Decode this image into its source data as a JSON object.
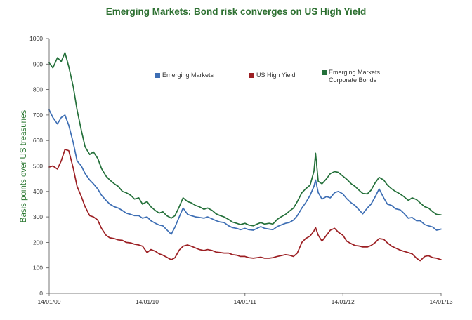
{
  "chart_data": {
    "type": "line",
    "title": "Emerging Markets: Bond risk converges on US High Yield",
    "ylabel": "Basis points over US treasuries",
    "ylim": [
      0,
      1000
    ],
    "y_ticks": [
      0,
      100,
      200,
      300,
      400,
      500,
      600,
      700,
      800,
      900,
      1000
    ],
    "x_ticks": [
      "2009-01-14",
      "2010-01-14",
      "2011-01-14",
      "2012-01-14",
      "2013-01-14"
    ],
    "x_tick_labels": [
      "14/01/09",
      "14/01/10",
      "14/01/11",
      "14/01/12",
      "14/01/13"
    ],
    "grid": false,
    "legend_position": "top-center",
    "title_color": "#2d7031",
    "axis_label_color": "#2d7a34",
    "x": [
      "2009-01-14",
      "2009-01-28",
      "2009-02-14",
      "2009-02-28",
      "2009-03-14",
      "2009-03-28",
      "2009-04-14",
      "2009-04-28",
      "2009-05-14",
      "2009-05-28",
      "2009-06-14",
      "2009-06-28",
      "2009-07-14",
      "2009-07-28",
      "2009-08-14",
      "2009-08-28",
      "2009-09-14",
      "2009-09-28",
      "2009-10-14",
      "2009-10-28",
      "2009-11-14",
      "2009-11-28",
      "2009-12-14",
      "2009-12-28",
      "2010-01-14",
      "2010-01-28",
      "2010-02-14",
      "2010-02-28",
      "2010-03-14",
      "2010-03-28",
      "2010-04-14",
      "2010-04-28",
      "2010-05-14",
      "2010-05-28",
      "2010-06-14",
      "2010-06-28",
      "2010-07-14",
      "2010-07-28",
      "2010-08-14",
      "2010-08-28",
      "2010-09-14",
      "2010-09-28",
      "2010-10-14",
      "2010-10-28",
      "2010-11-14",
      "2010-11-28",
      "2010-12-14",
      "2010-12-28",
      "2011-01-14",
      "2011-01-28",
      "2011-02-14",
      "2011-02-28",
      "2011-03-14",
      "2011-03-28",
      "2011-04-14",
      "2011-04-28",
      "2011-05-14",
      "2011-05-28",
      "2011-06-14",
      "2011-06-28",
      "2011-07-14",
      "2011-07-28",
      "2011-08-14",
      "2011-08-28",
      "2011-09-14",
      "2011-09-28",
      "2011-10-04",
      "2011-10-14",
      "2011-10-28",
      "2011-11-14",
      "2011-11-28",
      "2011-12-14",
      "2011-12-28",
      "2012-01-14",
      "2012-01-28",
      "2012-02-14",
      "2012-02-28",
      "2012-03-14",
      "2012-03-28",
      "2012-04-14",
      "2012-04-28",
      "2012-05-14",
      "2012-05-28",
      "2012-06-14",
      "2012-06-28",
      "2012-07-14",
      "2012-07-28",
      "2012-08-14",
      "2012-08-28",
      "2012-09-14",
      "2012-09-28",
      "2012-10-14",
      "2012-10-28",
      "2012-11-14",
      "2012-11-28",
      "2012-12-14",
      "2012-12-28",
      "2013-01-14"
    ],
    "series": [
      {
        "name": "Emerging Markets",
        "color": "#3d6eb4",
        "values": [
          720,
          690,
          665,
          690,
          700,
          660,
          590,
          520,
          500,
          470,
          445,
          430,
          410,
          385,
          365,
          350,
          340,
          335,
          325,
          315,
          310,
          305,
          305,
          295,
          300,
          285,
          275,
          268,
          265,
          250,
          232,
          260,
          300,
          335,
          310,
          305,
          300,
          298,
          295,
          300,
          292,
          285,
          280,
          278,
          265,
          258,
          255,
          250,
          255,
          250,
          248,
          255,
          262,
          255,
          252,
          250,
          262,
          268,
          275,
          278,
          288,
          305,
          335,
          355,
          385,
          420,
          445,
          395,
          370,
          380,
          375,
          395,
          400,
          390,
          372,
          355,
          345,
          328,
          312,
          335,
          350,
          380,
          410,
          375,
          350,
          345,
          332,
          328,
          315,
          295,
          298,
          285,
          285,
          270,
          265,
          260,
          248,
          252
        ]
      },
      {
        "name": "US High Yield",
        "color": "#9c1f23",
        "values": [
          496,
          500,
          488,
          520,
          565,
          560,
          490,
          420,
          380,
          340,
          305,
          300,
          288,
          255,
          228,
          218,
          215,
          210,
          208,
          200,
          198,
          193,
          190,
          185,
          160,
          172,
          165,
          155,
          150,
          142,
          132,
          140,
          170,
          185,
          190,
          185,
          178,
          172,
          168,
          172,
          168,
          162,
          160,
          158,
          158,
          152,
          150,
          145,
          145,
          140,
          138,
          140,
          142,
          138,
          138,
          140,
          145,
          148,
          152,
          150,
          145,
          158,
          200,
          215,
          225,
          245,
          258,
          228,
          205,
          228,
          248,
          255,
          240,
          228,
          205,
          195,
          188,
          186,
          182,
          182,
          188,
          200,
          215,
          212,
          198,
          185,
          178,
          170,
          165,
          160,
          155,
          138,
          128,
          145,
          148,
          140,
          138,
          132
        ]
      },
      {
        "name": "Emerging Markets Corporate Bonds",
        "color": "#24703a",
        "values": [
          905,
          885,
          925,
          910,
          945,
          890,
          810,
          720,
          640,
          575,
          545,
          555,
          530,
          490,
          460,
          445,
          430,
          420,
          400,
          395,
          385,
          370,
          375,
          350,
          360,
          340,
          325,
          315,
          320,
          305,
          295,
          305,
          340,
          375,
          360,
          355,
          345,
          340,
          330,
          335,
          325,
          312,
          305,
          300,
          290,
          280,
          275,
          270,
          275,
          268,
          265,
          272,
          278,
          272,
          275,
          272,
          290,
          300,
          310,
          322,
          335,
          360,
          395,
          410,
          425,
          480,
          550,
          440,
          430,
          450,
          470,
          478,
          475,
          460,
          448,
          430,
          420,
          405,
          392,
          390,
          405,
          435,
          455,
          445,
          425,
          410,
          400,
          390,
          380,
          365,
          375,
          368,
          355,
          340,
          335,
          320,
          310,
          308
        ]
      }
    ]
  }
}
